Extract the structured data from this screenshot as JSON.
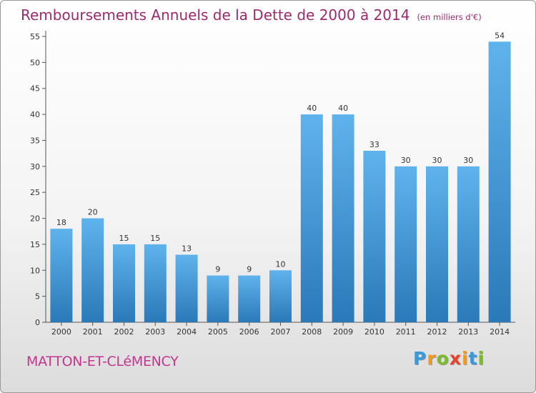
{
  "title": "Remboursements Annuels de la Dette de 2000 à 2014",
  "unit": "(en milliers d'€)",
  "commune": "MATTON-ET-CLéMENCY",
  "logo": {
    "letters": [
      {
        "ch": "P",
        "color": "#3a9ad9"
      },
      {
        "ch": "r",
        "color": "#f39a1e"
      },
      {
        "ch": "o",
        "color": "#7dbb2e"
      },
      {
        "ch": "x",
        "color": "#e8412c"
      },
      {
        "ch": "i",
        "color": "#f39a1e"
      },
      {
        "ch": "t",
        "color": "#3a9ad9"
      },
      {
        "ch": "i",
        "color": "#7dbb2e"
      }
    ]
  },
  "colors": {
    "bar_light": "#5fb3ec",
    "bar_dark": "#2a79b8",
    "title": "#9c2a6e",
    "commune": "#c0388e"
  },
  "chart_data": {
    "type": "bar",
    "categories": [
      "2000",
      "2001",
      "2002",
      "2003",
      "2004",
      "2005",
      "2006",
      "2007",
      "2008",
      "2009",
      "2010",
      "2011",
      "2012",
      "2013",
      "2014"
    ],
    "values": [
      18,
      20,
      15,
      15,
      13,
      9,
      9,
      10,
      40,
      40,
      33,
      30,
      30,
      30,
      54
    ],
    "title": "Remboursements Annuels de la Dette de 2000 à 2014",
    "xlabel": "",
    "ylabel": "",
    "ylim": [
      0,
      55
    ],
    "yticks": [
      0,
      5,
      10,
      15,
      20,
      25,
      30,
      35,
      40,
      45,
      50,
      55
    ],
    "grid": false
  }
}
